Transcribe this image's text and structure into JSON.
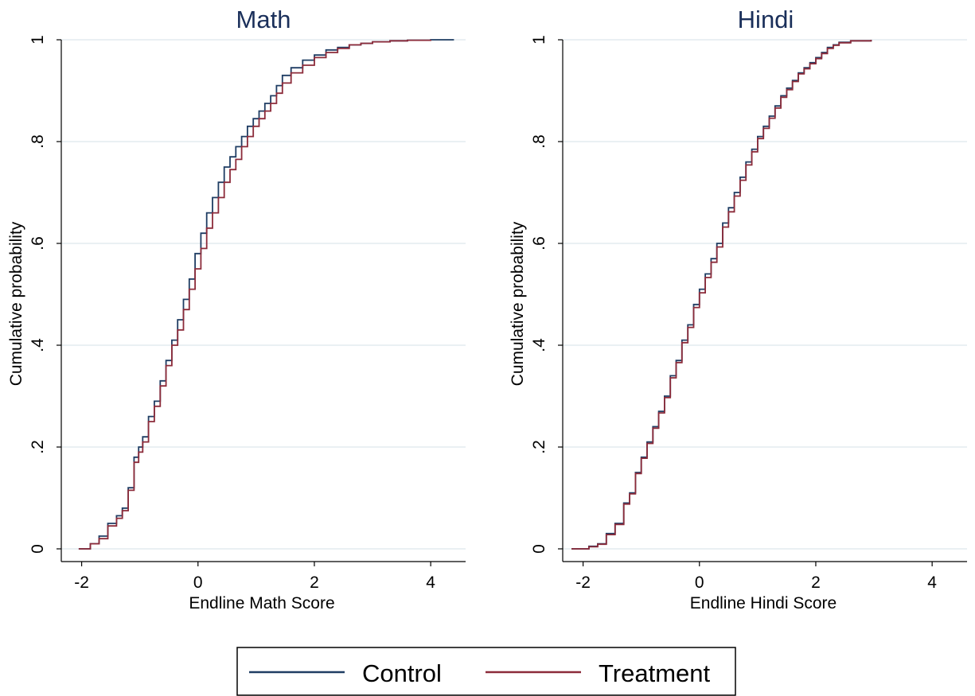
{
  "chart_data": [
    {
      "type": "line",
      "title": "Math",
      "xlabel": "Endline Math Score",
      "ylabel": "Cumulative probability",
      "xlim": [
        -2.35,
        4.6
      ],
      "ylim": [
        -0.025,
        1.0
      ],
      "xticks": [
        -2,
        0,
        2,
        4
      ],
      "xtick_labels": [
        "-2",
        "0",
        "2",
        "4"
      ],
      "yticks": [
        0,
        0.2,
        0.4,
        0.6,
        0.8,
        1
      ],
      "ytick_labels": [
        "0",
        ".2",
        ".4",
        ".6",
        ".8",
        "1"
      ],
      "grid": true,
      "series": [
        {
          "name": "Control",
          "color": "#1f3d63",
          "x": [
            -2.05,
            -1.85,
            -1.7,
            -1.55,
            -1.4,
            -1.3,
            -1.2,
            -1.1,
            -1.02,
            -0.95,
            -0.85,
            -0.75,
            -0.65,
            -0.55,
            -0.45,
            -0.35,
            -0.25,
            -0.15,
            -0.05,
            0.05,
            0.15,
            0.25,
            0.35,
            0.45,
            0.55,
            0.65,
            0.75,
            0.85,
            0.95,
            1.05,
            1.15,
            1.25,
            1.35,
            1.45,
            1.6,
            1.8,
            2.0,
            2.2,
            2.4,
            2.6,
            2.8,
            3.0,
            3.3,
            3.6,
            4.0,
            4.4
          ],
          "y": [
            0.0,
            0.01,
            0.025,
            0.05,
            0.065,
            0.08,
            0.12,
            0.18,
            0.2,
            0.22,
            0.26,
            0.29,
            0.33,
            0.37,
            0.41,
            0.45,
            0.49,
            0.53,
            0.58,
            0.62,
            0.66,
            0.69,
            0.72,
            0.75,
            0.77,
            0.79,
            0.81,
            0.83,
            0.845,
            0.86,
            0.875,
            0.89,
            0.91,
            0.93,
            0.945,
            0.96,
            0.97,
            0.98,
            0.985,
            0.99,
            0.993,
            0.996,
            0.998,
            0.999,
            1.0,
            1.0
          ]
        },
        {
          "name": "Treatment",
          "color": "#8c2b3a",
          "x": [
            -2.05,
            -1.85,
            -1.7,
            -1.55,
            -1.4,
            -1.3,
            -1.2,
            -1.1,
            -1.02,
            -0.95,
            -0.85,
            -0.75,
            -0.65,
            -0.55,
            -0.45,
            -0.35,
            -0.25,
            -0.15,
            -0.05,
            0.05,
            0.15,
            0.25,
            0.35,
            0.45,
            0.55,
            0.65,
            0.75,
            0.85,
            0.95,
            1.05,
            1.15,
            1.25,
            1.35,
            1.45,
            1.6,
            1.8,
            2.0,
            2.2,
            2.4,
            2.6,
            2.8,
            3.0,
            3.3,
            3.6,
            4.0
          ],
          "y": [
            0.0,
            0.01,
            0.02,
            0.045,
            0.06,
            0.075,
            0.115,
            0.17,
            0.19,
            0.21,
            0.25,
            0.28,
            0.32,
            0.36,
            0.4,
            0.43,
            0.47,
            0.51,
            0.55,
            0.59,
            0.63,
            0.66,
            0.69,
            0.72,
            0.745,
            0.765,
            0.79,
            0.81,
            0.83,
            0.845,
            0.86,
            0.875,
            0.895,
            0.915,
            0.935,
            0.95,
            0.965,
            0.975,
            0.983,
            0.99,
            0.993,
            0.996,
            0.998,
            0.999,
            1.0
          ]
        }
      ]
    },
    {
      "type": "line",
      "title": "Hindi",
      "xlabel": "Endline Hindi Score",
      "ylabel": "Cumulative probability",
      "xlim": [
        -2.35,
        4.6
      ],
      "ylim": [
        -0.025,
        1.0
      ],
      "xticks": [
        -2,
        0,
        2,
        4
      ],
      "xtick_labels": [
        "-2",
        "0",
        "2",
        "4"
      ],
      "yticks": [
        0,
        0.2,
        0.4,
        0.6,
        0.8,
        1
      ],
      "ytick_labels": [
        "0",
        ".2",
        ".4",
        ".6",
        ".8",
        "1"
      ],
      "grid": true,
      "series": [
        {
          "name": "Control",
          "color": "#1f3d63",
          "x": [
            -2.2,
            -1.9,
            -1.75,
            -1.6,
            -1.45,
            -1.3,
            -1.2,
            -1.1,
            -1.0,
            -0.9,
            -0.8,
            -0.7,
            -0.6,
            -0.5,
            -0.4,
            -0.3,
            -0.2,
            -0.1,
            0.0,
            0.1,
            0.2,
            0.3,
            0.4,
            0.5,
            0.6,
            0.7,
            0.8,
            0.9,
            1.0,
            1.1,
            1.2,
            1.3,
            1.4,
            1.5,
            1.6,
            1.7,
            1.8,
            1.9,
            2.0,
            2.1,
            2.2,
            2.3,
            2.4,
            2.6,
            2.95
          ],
          "y": [
            0.0,
            0.005,
            0.01,
            0.03,
            0.05,
            0.09,
            0.11,
            0.15,
            0.18,
            0.21,
            0.24,
            0.27,
            0.3,
            0.34,
            0.37,
            0.41,
            0.44,
            0.48,
            0.51,
            0.54,
            0.57,
            0.6,
            0.64,
            0.67,
            0.7,
            0.73,
            0.76,
            0.785,
            0.81,
            0.83,
            0.85,
            0.87,
            0.89,
            0.905,
            0.92,
            0.935,
            0.945,
            0.955,
            0.965,
            0.975,
            0.985,
            0.99,
            0.995,
            0.998,
            1.0
          ]
        },
        {
          "name": "Treatment",
          "color": "#8c2b3a",
          "x": [
            -2.2,
            -1.9,
            -1.75,
            -1.6,
            -1.45,
            -1.3,
            -1.2,
            -1.1,
            -1.0,
            -0.9,
            -0.8,
            -0.7,
            -0.6,
            -0.5,
            -0.4,
            -0.3,
            -0.2,
            -0.1,
            0.0,
            0.1,
            0.2,
            0.3,
            0.4,
            0.5,
            0.6,
            0.7,
            0.8,
            0.9,
            1.0,
            1.1,
            1.2,
            1.3,
            1.4,
            1.5,
            1.6,
            1.7,
            1.8,
            1.9,
            2.0,
            2.1,
            2.2,
            2.3,
            2.4,
            2.6,
            2.95
          ],
          "y": [
            0.0,
            0.004,
            0.009,
            0.028,
            0.048,
            0.088,
            0.108,
            0.148,
            0.178,
            0.207,
            0.237,
            0.267,
            0.297,
            0.336,
            0.366,
            0.405,
            0.435,
            0.474,
            0.503,
            0.533,
            0.563,
            0.593,
            0.632,
            0.662,
            0.693,
            0.724,
            0.754,
            0.78,
            0.806,
            0.826,
            0.846,
            0.866,
            0.887,
            0.902,
            0.918,
            0.933,
            0.943,
            0.953,
            0.963,
            0.973,
            0.983,
            0.989,
            0.994,
            0.998,
            1.0
          ]
        }
      ]
    }
  ],
  "legend": {
    "placement": "bottom-center",
    "items": [
      {
        "label": "Control",
        "color": "#1f3d63"
      },
      {
        "label": "Treatment",
        "color": "#8c2b3a"
      }
    ]
  }
}
